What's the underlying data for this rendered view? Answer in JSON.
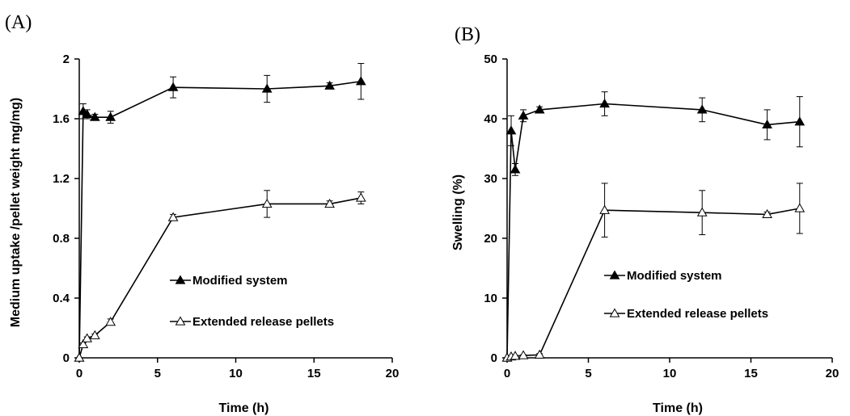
{
  "chart_data": [
    {
      "type": "line",
      "panel_label": "(A)",
      "xlabel": "Time (h)",
      "ylabel": "Medium uptake /pellet weight mg/mg)",
      "xlim": [
        0,
        20
      ],
      "ylim": [
        0,
        2
      ],
      "xticks": [
        "0",
        "5",
        "10",
        "15",
        "20"
      ],
      "yticks": [
        "0",
        "0.4",
        "0.8",
        "1.2",
        "1.6",
        "2"
      ],
      "legend_position": "center-right",
      "grid": false,
      "series": [
        {
          "name": "Modified system",
          "marker": "filled-triangle",
          "color": "#000000",
          "x": [
            0,
            0.25,
            0.5,
            1,
            2,
            6,
            12,
            16,
            18
          ],
          "y": [
            0,
            1.65,
            1.63,
            1.61,
            1.61,
            1.81,
            1.8,
            1.82,
            1.85
          ],
          "err": [
            0,
            0.05,
            0.03,
            0.02,
            0.04,
            0.07,
            0.09,
            0.02,
            0.12
          ]
        },
        {
          "name": "Extended release pellets",
          "marker": "open-triangle",
          "color": "#000000",
          "x": [
            0,
            0.25,
            0.5,
            1,
            2,
            6,
            12,
            16,
            18
          ],
          "y": [
            0,
            0.09,
            0.13,
            0.15,
            0.24,
            0.94,
            1.03,
            1.03,
            1.07
          ],
          "err": [
            0,
            0.01,
            0.01,
            0.01,
            0.02,
            0.02,
            0.09,
            0.02,
            0.04
          ]
        }
      ]
    },
    {
      "type": "line",
      "panel_label": "(B)",
      "xlabel": "Time (h)",
      "ylabel": "Swelling (%)",
      "xlim": [
        0,
        20
      ],
      "ylim": [
        0,
        50
      ],
      "xticks": [
        "0",
        "5",
        "10",
        "15",
        "20"
      ],
      "yticks": [
        "0",
        "10",
        "20",
        "30",
        "40",
        "50"
      ],
      "legend_position": "center-right",
      "grid": false,
      "series": [
        {
          "name": "Modified system",
          "marker": "filled-triangle",
          "color": "#000000",
          "x": [
            0,
            0.25,
            0.5,
            1,
            2,
            6,
            12,
            16,
            18
          ],
          "y": [
            0,
            38,
            31.5,
            40.5,
            41.5,
            42.5,
            41.5,
            39,
            39.5
          ],
          "err": [
            0,
            2.5,
            1,
            1,
            0.5,
            2,
            2,
            2.5,
            4.2
          ]
        },
        {
          "name": "Extended release pellets",
          "marker": "open-triangle",
          "color": "#000000",
          "x": [
            0,
            0.25,
            0.5,
            1,
            2,
            6,
            12,
            16,
            18
          ],
          "y": [
            0,
            0.2,
            0.3,
            0.4,
            0.5,
            24.7,
            24.3,
            24,
            25
          ],
          "err": [
            0,
            0.1,
            0.1,
            0.1,
            0.2,
            4.5,
            3.7,
            0.4,
            4.2
          ]
        }
      ]
    }
  ]
}
